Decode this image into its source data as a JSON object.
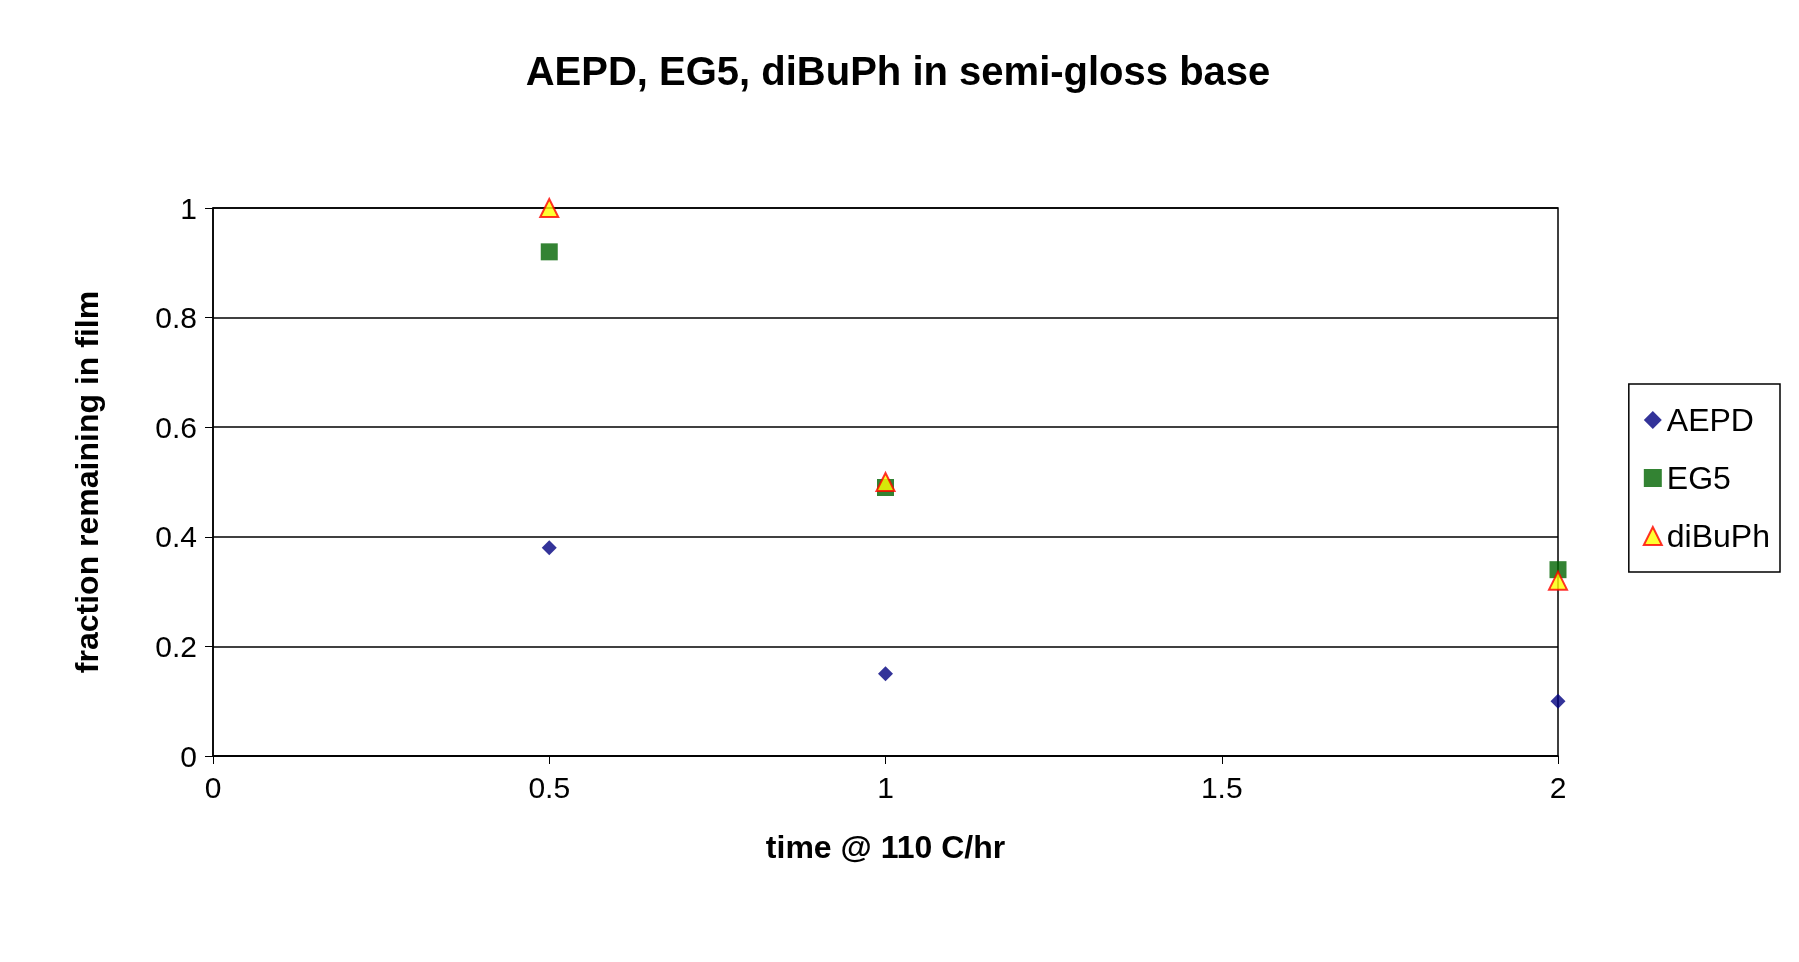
{
  "chart_data": {
    "type": "scatter",
    "title": "AEPD, EG5, diBuPh in semi-gloss base",
    "xlabel": "time @ 110 C/hr",
    "ylabel": "fraction remaining in film",
    "x": [
      0.5,
      1,
      2
    ],
    "series": [
      {
        "name": "AEPD",
        "color": "#000080",
        "marker": "diamond",
        "values": [
          0.38,
          0.15,
          0.1
        ]
      },
      {
        "name": "EG5",
        "color": "#006400",
        "marker": "square",
        "values": [
          0.92,
          0.49,
          0.34
        ]
      },
      {
        "name": "diBuPh",
        "color": "#ffff00",
        "marker": "triangle",
        "values": [
          1.0,
          0.5,
          0.32
        ]
      }
    ],
    "xlim": [
      0,
      2
    ],
    "xticks": [
      0,
      0.5,
      1,
      1.5,
      2
    ],
    "ylim": [
      0,
      1
    ],
    "yticks": [
      0,
      0.2,
      0.4,
      0.6,
      0.8,
      1
    ],
    "grid": "y",
    "legend": "right"
  }
}
